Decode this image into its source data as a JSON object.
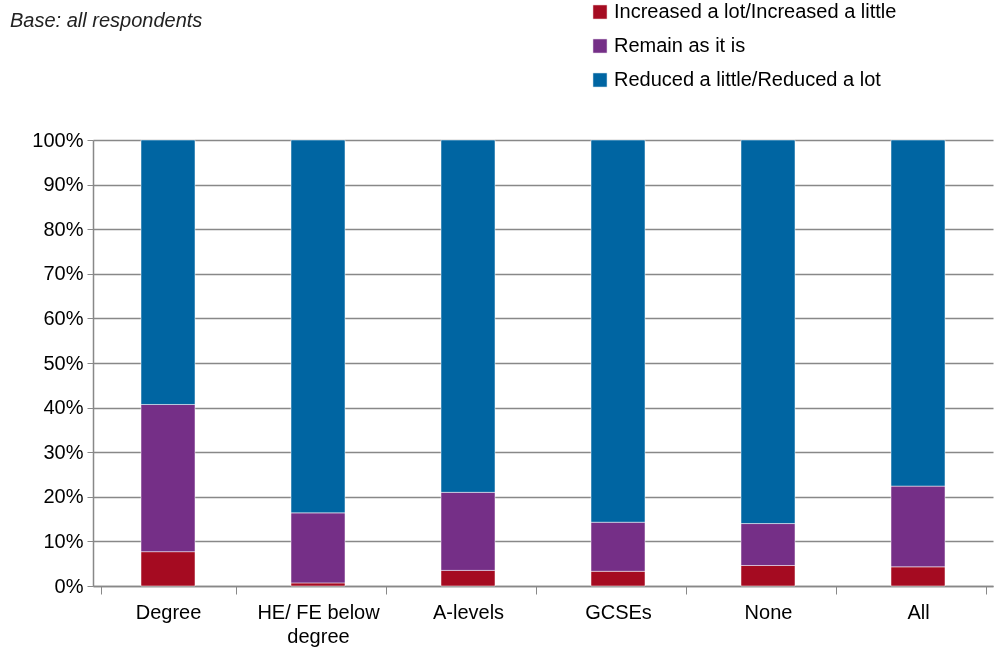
{
  "chart_data": {
    "type": "bar",
    "stacked": true,
    "annotations": [
      "Base: all respondents"
    ],
    "categories": [
      "Degree",
      "HE/ FE below degree",
      "A-levels",
      "GCSEs",
      "None",
      "All"
    ],
    "series": [
      {
        "name": "Increased a lot/Increased a little",
        "color": "#a50b21",
        "values": [
          7.7,
          0.7,
          3.5,
          3.3,
          4.6,
          4.3
        ]
      },
      {
        "name": "Remain as it is",
        "color": "#752f87",
        "values": [
          33.0,
          15.7,
          17.5,
          11.0,
          9.4,
          18.1
        ]
      },
      {
        "name": "Reduced a little/Reduced a lot",
        "color": "#0065a2",
        "values": [
          59.3,
          83.6,
          79.0,
          85.7,
          86.0,
          77.6
        ]
      }
    ],
    "ylim": [
      0,
      100
    ],
    "yticks": [
      {
        "value": 0,
        "label": "0%"
      },
      {
        "value": 10,
        "label": "10%"
      },
      {
        "value": 20,
        "label": "20%"
      },
      {
        "value": 30,
        "label": "30%"
      },
      {
        "value": 40,
        "label": "40%"
      },
      {
        "value": 50,
        "label": "50%"
      },
      {
        "value": 60,
        "label": "60%"
      },
      {
        "value": 70,
        "label": "70%"
      },
      {
        "value": 80,
        "label": "80%"
      },
      {
        "value": 90,
        "label": "90%"
      },
      {
        "value": 100,
        "label": "100%"
      }
    ],
    "grid": "y",
    "legend": "top right"
  }
}
